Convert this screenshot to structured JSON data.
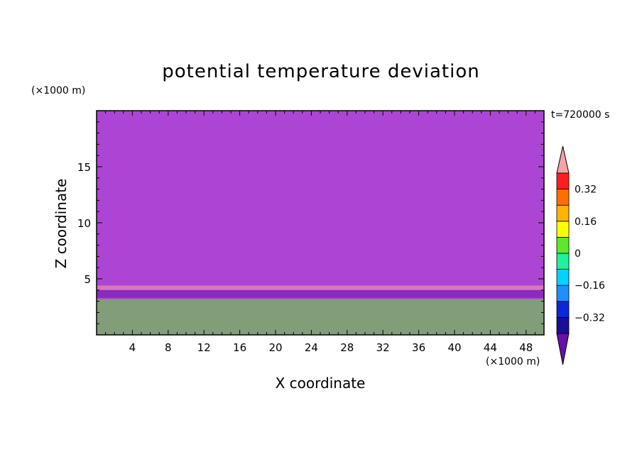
{
  "chart_data": {
    "type": "heatmap",
    "title": "potential temperature deviation",
    "xlabel": "X coordinate",
    "ylabel": "Z coordinate",
    "x_units_note": "(×1000 m)",
    "z_units_note": "(×1000 m)",
    "time_annotation": "t=720000 s",
    "xlim": [
      0,
      50
    ],
    "ylim": [
      0,
      20
    ],
    "x_ticks": [
      "4",
      "8",
      "12",
      "16",
      "20",
      "24",
      "28",
      "32",
      "36",
      "40",
      "44",
      "48"
    ],
    "z_ticks": [
      "5",
      "10",
      "15"
    ],
    "colorbar": {
      "levels": [
        -0.4,
        -0.32,
        -0.24,
        -0.16,
        -0.08,
        0,
        0.08,
        0.16,
        0.24,
        0.32,
        0.4
      ],
      "tick_labels": [
        "0.32",
        "0.16",
        "0",
        "-0.16",
        "-0.32"
      ],
      "colors": [
        "#6a0fa8",
        "#1b0e96",
        "#0c27d8",
        "#1e8fff",
        "#00d2ff",
        "#22f09a",
        "#5ee82c",
        "#ffff00",
        "#ffb400",
        "#ff6e00",
        "#ff1e1e",
        "#f7a3a5"
      ]
    }
  }
}
